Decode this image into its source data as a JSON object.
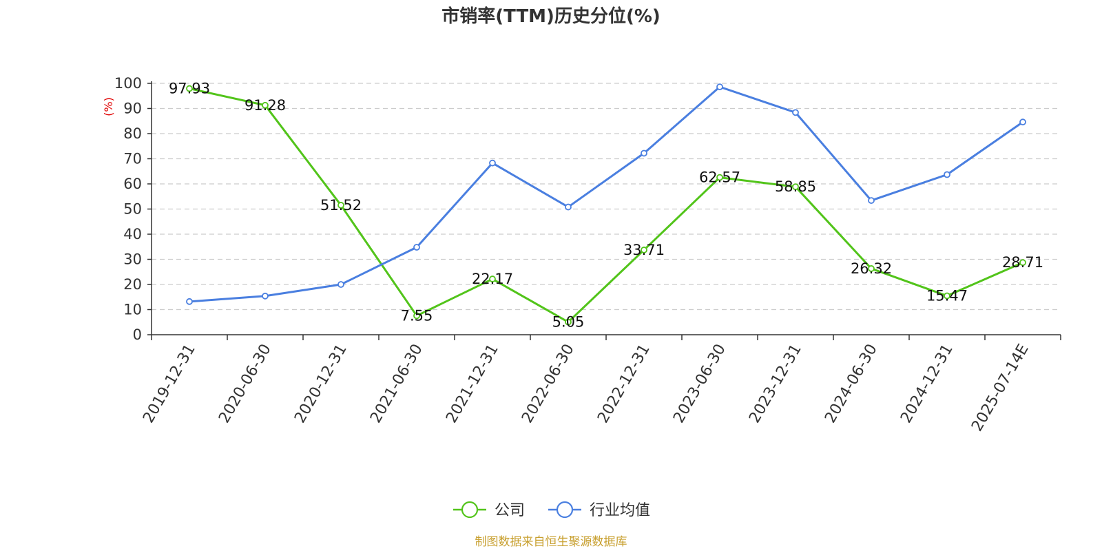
{
  "chart_data": {
    "type": "line",
    "title": "市销率(TTM)历史分位(%)",
    "ylabel": "(%)",
    "ylim": [
      0,
      100
    ],
    "yticks": [
      0,
      10,
      20,
      30,
      40,
      50,
      60,
      70,
      80,
      90,
      100
    ],
    "grid": true,
    "legend_position": "bottom",
    "categories": [
      "2019-12-31",
      "2020-06-30",
      "2020-12-31",
      "2021-06-30",
      "2021-12-31",
      "2022-06-30",
      "2022-12-31",
      "2023-06-30",
      "2023-12-31",
      "2024-06-30",
      "2024-12-31",
      "2025-07-14E"
    ],
    "series": [
      {
        "name": "公司",
        "color": "#52c41a",
        "show_labels": true,
        "values": [
          97.93,
          91.28,
          51.52,
          7.55,
          22.17,
          5.05,
          33.71,
          62.57,
          58.85,
          26.32,
          15.47,
          28.71
        ],
        "labels": [
          "97.93",
          "91.28",
          "51.52",
          "7.55",
          "22.17",
          "5.05",
          "33.71",
          "62.57",
          "58.85",
          "26.32",
          "15.47",
          "28.71"
        ]
      },
      {
        "name": "行业均值",
        "color": "#4a7fe0",
        "show_labels": false,
        "values": [
          13.2,
          15.4,
          20.0,
          34.8,
          68.3,
          50.8,
          72.2,
          98.6,
          88.4,
          53.4,
          63.7,
          84.6
        ]
      }
    ]
  },
  "footer": {
    "source": "制图数据来自恒生聚源数据库",
    "source_color": "#c8a030"
  },
  "colors": {
    "ylabel": "#e00000",
    "grid": "#cccccc",
    "axis": "#333333"
  }
}
